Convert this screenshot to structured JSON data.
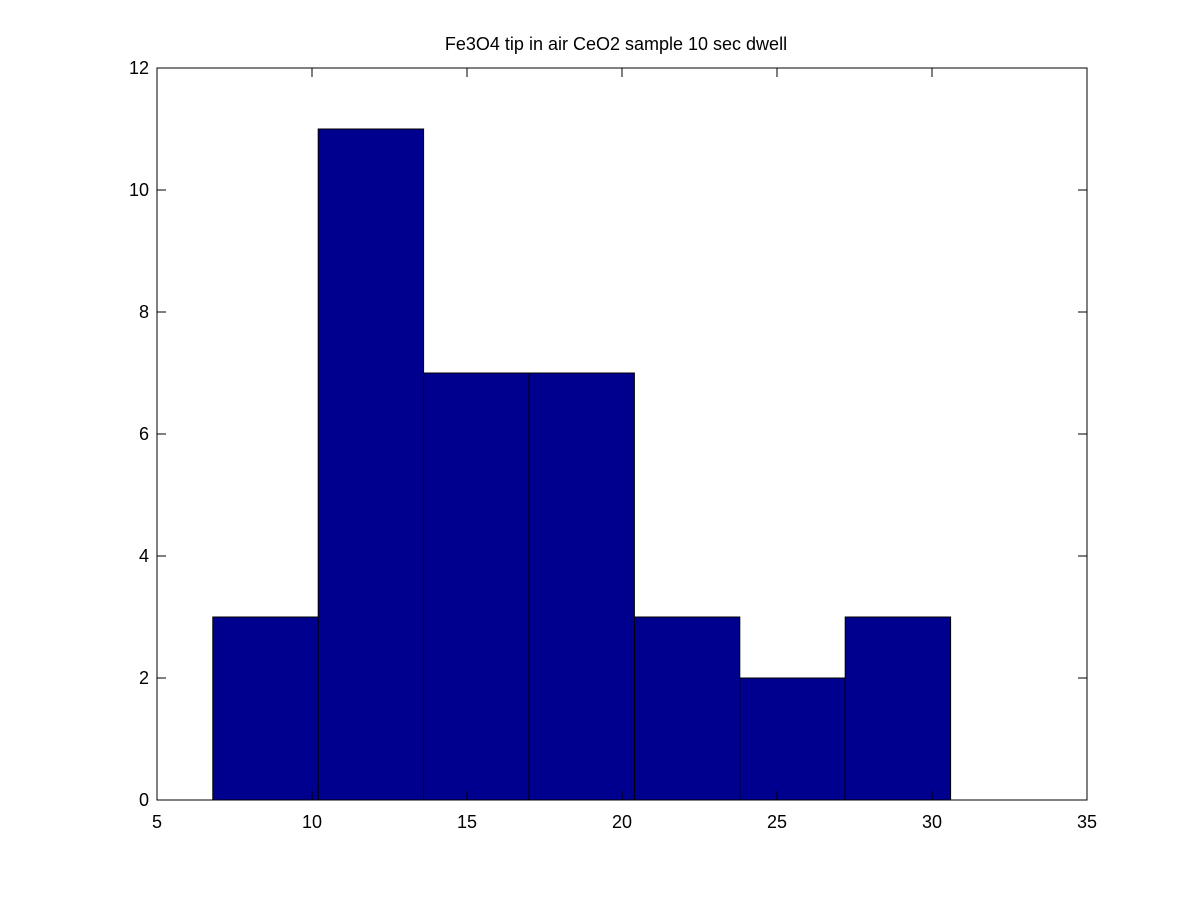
{
  "chart_data": {
    "type": "bar",
    "title": "Fe3O4 tip in air CeO2 sample 10 sec dwell",
    "xlabel": "",
    "ylabel": "",
    "bins": [
      {
        "x0": 6.8,
        "x1": 10.2,
        "count": 3
      },
      {
        "x0": 10.2,
        "x1": 13.6,
        "count": 11
      },
      {
        "x0": 13.6,
        "x1": 17.0,
        "count": 7
      },
      {
        "x0": 17.0,
        "x1": 20.4,
        "count": 7
      },
      {
        "x0": 20.4,
        "x1": 23.8,
        "count": 3
      },
      {
        "x0": 23.8,
        "x1": 27.2,
        "count": 2
      },
      {
        "x0": 27.2,
        "x1": 30.6,
        "count": 3
      }
    ],
    "xlim": [
      5,
      35
    ],
    "ylim": [
      0,
      12
    ],
    "xticks": [
      "5",
      "10",
      "15",
      "20",
      "25",
      "30",
      "35"
    ],
    "yticks": [
      "0",
      "2",
      "4",
      "6",
      "8",
      "10",
      "12"
    ],
    "grid": false,
    "legend": "none",
    "bar_color": "#00008f",
    "edge_color": "#000000"
  }
}
